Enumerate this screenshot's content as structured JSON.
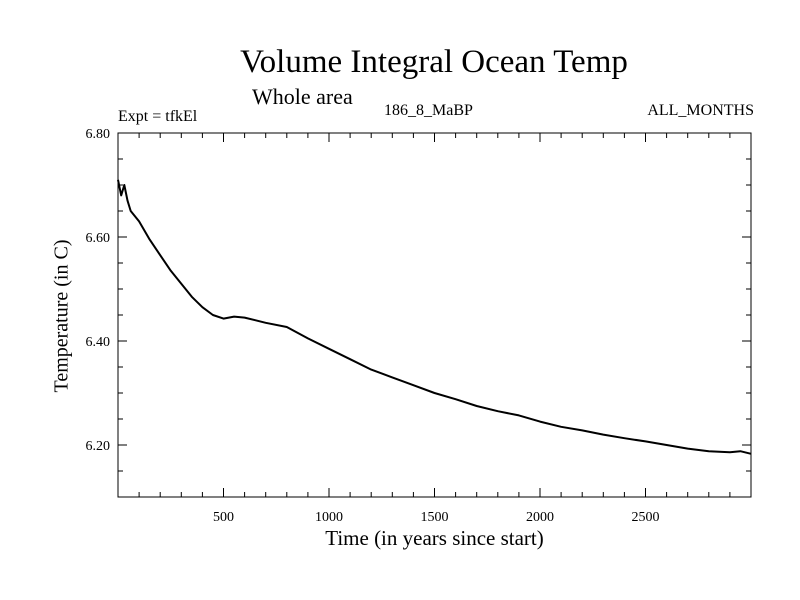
{
  "chart_data": {
    "type": "line",
    "title": "Volume Integral Ocean Temp",
    "subtitle": "Whole area",
    "annotations": {
      "left": "Expt = tfkEl",
      "center": "186_8_MaBP",
      "right": "ALL_MONTHS"
    },
    "xlabel": "Time (in years since start)",
    "ylabel": "Temperature (in C)",
    "xlim": [
      0,
      3000
    ],
    "ylim": [
      6.1,
      6.8
    ],
    "xticks": [
      500,
      1000,
      1500,
      2000,
      2500
    ],
    "xtick_labels": [
      "500",
      "1000",
      "1500",
      "2000",
      "2500"
    ],
    "yticks": [
      6.2,
      6.4,
      6.6,
      6.8
    ],
    "ytick_labels": [
      "6.20",
      "6.40",
      "6.60",
      "6.80"
    ],
    "grid": false,
    "legend": "none",
    "line_color": "#000000",
    "series": [
      {
        "x": [
          0,
          15,
          30,
          45,
          60,
          100,
          150,
          200,
          250,
          300,
          350,
          400,
          450,
          500,
          550,
          600,
          650,
          700,
          800,
          900,
          1000,
          1100,
          1200,
          1300,
          1400,
          1500,
          1600,
          1700,
          1800,
          1900,
          2000,
          2100,
          2200,
          2300,
          2400,
          2500,
          2600,
          2700,
          2800,
          2900,
          2950,
          3000
        ],
        "y": [
          6.71,
          6.68,
          6.7,
          6.67,
          6.65,
          6.63,
          6.595,
          6.565,
          6.535,
          6.51,
          6.485,
          6.465,
          6.45,
          6.443,
          6.447,
          6.445,
          6.44,
          6.435,
          6.427,
          6.405,
          6.385,
          6.365,
          6.345,
          6.33,
          6.315,
          6.3,
          6.288,
          6.275,
          6.265,
          6.257,
          6.245,
          6.235,
          6.228,
          6.22,
          6.213,
          6.207,
          6.2,
          6.193,
          6.188,
          6.186,
          6.188,
          6.183
        ]
      }
    ]
  }
}
